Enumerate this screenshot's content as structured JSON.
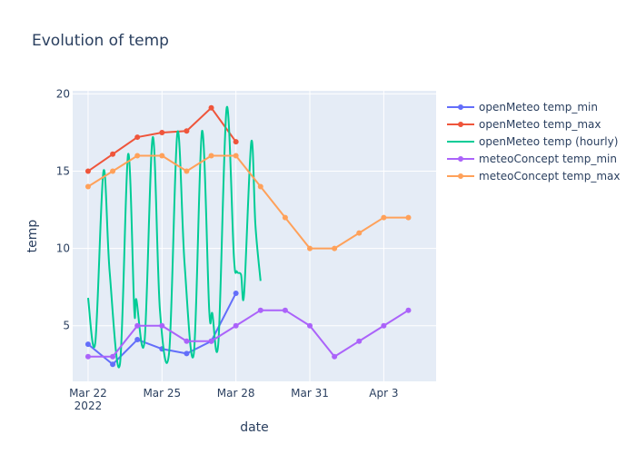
{
  "chart_data": {
    "type": "line",
    "title": "Evolution of temp",
    "xlabel": "date",
    "ylabel": "temp",
    "x_axis": {
      "type": "date",
      "range": [
        "2022-03-21T09:00",
        "2022-04-05T03:00"
      ],
      "ticks": [
        {
          "date": "2022-03-22",
          "label": "Mar 22",
          "sublabel": "2022"
        },
        {
          "date": "2022-03-25",
          "label": "Mar 25",
          "sublabel": ""
        },
        {
          "date": "2022-03-28",
          "label": "Mar 28",
          "sublabel": ""
        },
        {
          "date": "2022-03-31",
          "label": "Mar 31",
          "sublabel": ""
        },
        {
          "date": "2022-04-03",
          "label": "Apr 3",
          "sublabel": ""
        }
      ]
    },
    "y_axis": {
      "range": [
        1.4,
        20.2
      ],
      "ticks": [
        5,
        10,
        15,
        20
      ]
    },
    "grid": true,
    "legend_position": "right",
    "background_color": "#e5ecf6",
    "series": [
      {
        "name": "openMeteo temp_min",
        "color": "#636efa",
        "mode": "lines+markers",
        "points": [
          {
            "x": "2022-03-22",
            "y": 3.8
          },
          {
            "x": "2022-03-23",
            "y": 2.5
          },
          {
            "x": "2022-03-24",
            "y": 4.1
          },
          {
            "x": "2022-03-25",
            "y": 3.5
          },
          {
            "x": "2022-03-26",
            "y": 3.2
          },
          {
            "x": "2022-03-27",
            "y": 4.0
          },
          {
            "x": "2022-03-28",
            "y": 7.1
          }
        ]
      },
      {
        "name": "openMeteo temp_max",
        "color": "#ef553b",
        "mode": "lines+markers",
        "points": [
          {
            "x": "2022-03-22",
            "y": 15.0
          },
          {
            "x": "2022-03-23",
            "y": 16.1
          },
          {
            "x": "2022-03-24",
            "y": 17.2
          },
          {
            "x": "2022-03-25",
            "y": 17.5
          },
          {
            "x": "2022-03-26",
            "y": 17.6
          },
          {
            "x": "2022-03-27",
            "y": 19.1
          },
          {
            "x": "2022-03-28",
            "y": 16.9
          }
        ]
      },
      {
        "name": "openMeteo temp (hourly)",
        "color": "#00cc96",
        "mode": "lines",
        "points": [
          {
            "x": "2022-03-22T00:00",
            "y": 6.8
          },
          {
            "x": "2022-03-22T07:00",
            "y": 3.9
          },
          {
            "x": "2022-03-22T15:00",
            "y": 15.0
          },
          {
            "x": "2022-03-22T21:00",
            "y": 8.5
          },
          {
            "x": "2022-03-23T07:00",
            "y": 2.5
          },
          {
            "x": "2022-03-23T15:00",
            "y": 16.1
          },
          {
            "x": "2022-03-23T21:00",
            "y": 6.0
          },
          {
            "x": "2022-03-23T23:00",
            "y": 6.7
          },
          {
            "x": "2022-03-24T07:00",
            "y": 4.0
          },
          {
            "x": "2022-03-24T15:00",
            "y": 17.2
          },
          {
            "x": "2022-03-24T22:00",
            "y": 6.0
          },
          {
            "x": "2022-03-25T07:00",
            "y": 3.3
          },
          {
            "x": "2022-03-25T15:00",
            "y": 17.5
          },
          {
            "x": "2022-03-25T22:00",
            "y": 9.0
          },
          {
            "x": "2022-03-26T07:00",
            "y": 3.2
          },
          {
            "x": "2022-03-26T15:00",
            "y": 17.6
          },
          {
            "x": "2022-03-26T22:00",
            "y": 6.0
          },
          {
            "x": "2022-03-27T01:00",
            "y": 5.8
          },
          {
            "x": "2022-03-27T07:00",
            "y": 4.0
          },
          {
            "x": "2022-03-27T15:00",
            "y": 19.1
          },
          {
            "x": "2022-03-27T22:00",
            "y": 9.5
          },
          {
            "x": "2022-03-28T01:00",
            "y": 8.5
          },
          {
            "x": "2022-03-28T05:00",
            "y": 8.3
          },
          {
            "x": "2022-03-28T08:00",
            "y": 7.1
          },
          {
            "x": "2022-03-28T15:00",
            "y": 16.9
          },
          {
            "x": "2022-03-28T19:00",
            "y": 11.5
          },
          {
            "x": "2022-03-29T00:00",
            "y": 7.9
          }
        ]
      },
      {
        "name": "meteoConcept temp_min",
        "color": "#ab63fa",
        "mode": "lines+markers",
        "points": [
          {
            "x": "2022-03-22",
            "y": 3.0
          },
          {
            "x": "2022-03-23",
            "y": 3.0
          },
          {
            "x": "2022-03-24",
            "y": 5.0
          },
          {
            "x": "2022-03-25",
            "y": 5.0
          },
          {
            "x": "2022-03-26",
            "y": 4.0
          },
          {
            "x": "2022-03-27",
            "y": 4.0
          },
          {
            "x": "2022-03-28",
            "y": 5.0
          },
          {
            "x": "2022-03-29",
            "y": 6.0
          },
          {
            "x": "2022-03-30",
            "y": 6.0
          },
          {
            "x": "2022-03-31",
            "y": 5.0
          },
          {
            "x": "2022-04-01",
            "y": 3.0
          },
          {
            "x": "2022-04-02",
            "y": 4.0
          },
          {
            "x": "2022-04-03",
            "y": 5.0
          },
          {
            "x": "2022-04-04",
            "y": 6.0
          }
        ]
      },
      {
        "name": "meteoConcept temp_max",
        "color": "#ffa15a",
        "mode": "lines+markers",
        "points": [
          {
            "x": "2022-03-22",
            "y": 14.0
          },
          {
            "x": "2022-03-23",
            "y": 15.0
          },
          {
            "x": "2022-03-24",
            "y": 16.0
          },
          {
            "x": "2022-03-25",
            "y": 16.0
          },
          {
            "x": "2022-03-26",
            "y": 15.0
          },
          {
            "x": "2022-03-27",
            "y": 16.0
          },
          {
            "x": "2022-03-28",
            "y": 16.0
          },
          {
            "x": "2022-03-29",
            "y": 14.0
          },
          {
            "x": "2022-03-30",
            "y": 12.0
          },
          {
            "x": "2022-03-31",
            "y": 10.0
          },
          {
            "x": "2022-04-01",
            "y": 10.0
          },
          {
            "x": "2022-04-02",
            "y": 11.0
          },
          {
            "x": "2022-04-03",
            "y": 12.0
          },
          {
            "x": "2022-04-04",
            "y": 12.0
          }
        ]
      }
    ]
  }
}
